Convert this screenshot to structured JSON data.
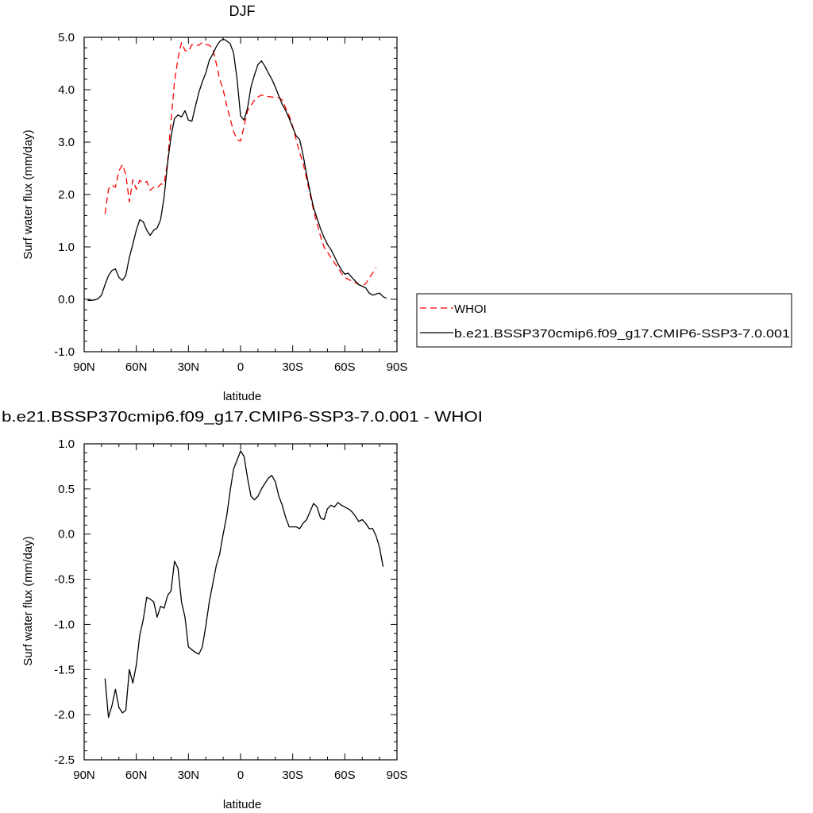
{
  "chart_data": [
    {
      "type": "line",
      "title": "DJF",
      "xlabel": "latitude",
      "ylabel": "Surf water flux (mm/day)",
      "xlim": [
        90,
        -90
      ],
      "ylim": [
        -1.0,
        5.0
      ],
      "x_tick_values": [
        90,
        60,
        30,
        0,
        -30,
        -60,
        -90
      ],
      "x_tick_labels": [
        "90N",
        "60N",
        "30N",
        "0",
        "30S",
        "60S",
        "90S"
      ],
      "y_tick_values": [
        -1,
        0,
        1,
        2,
        3,
        4,
        5
      ],
      "y_tick_labels": [
        "-1.0",
        "0.0",
        "1.0",
        "2.0",
        "3.0",
        "4.0",
        "5.0"
      ],
      "grid": false,
      "legend_position": "right",
      "series": [
        {
          "name": "WHOI",
          "color": "#ff0000",
          "dash": "dashed",
          "points": [
            [
              78,
              1.63
            ],
            [
              76,
              2.1
            ],
            [
              74,
              2.18
            ],
            [
              72,
              2.14
            ],
            [
              70,
              2.45
            ],
            [
              68,
              2.57
            ],
            [
              66,
              2.38
            ],
            [
              64,
              1.86
            ],
            [
              62,
              2.28
            ],
            [
              60,
              2.1
            ],
            [
              58,
              2.27
            ],
            [
              56,
              2.22
            ],
            [
              54,
              2.25
            ],
            [
              52,
              2.08
            ],
            [
              50,
              2.14
            ],
            [
              48,
              2.12
            ],
            [
              46,
              2.2
            ],
            [
              44,
              2.2
            ],
            [
              42,
              2.63
            ],
            [
              40,
              3.4
            ],
            [
              38,
              4.15
            ],
            [
              36,
              4.6
            ],
            [
              34,
              4.9
            ],
            [
              32,
              4.75
            ],
            [
              30,
              4.73
            ],
            [
              28,
              4.86
            ],
            [
              26,
              4.84
            ],
            [
              24,
              4.85
            ],
            [
              22,
              4.9
            ],
            [
              20,
              4.86
            ],
            [
              18,
              4.85
            ],
            [
              16,
              4.78
            ],
            [
              14,
              4.5
            ],
            [
              12,
              4.2
            ],
            [
              10,
              4.0
            ],
            [
              8,
              3.7
            ],
            [
              6,
              3.45
            ],
            [
              4,
              3.2
            ],
            [
              2,
              3.05
            ],
            [
              0,
              3.02
            ],
            [
              -2,
              3.3
            ],
            [
              -4,
              3.6
            ],
            [
              -6,
              3.7
            ],
            [
              -8,
              3.8
            ],
            [
              -10,
              3.86
            ],
            [
              -12,
              3.9
            ],
            [
              -14,
              3.88
            ],
            [
              -16,
              3.87
            ],
            [
              -18,
              3.86
            ],
            [
              -20,
              3.85
            ],
            [
              -22,
              3.85
            ],
            [
              -24,
              3.8
            ],
            [
              -26,
              3.65
            ],
            [
              -28,
              3.5
            ],
            [
              -30,
              3.3
            ],
            [
              -32,
              3.05
            ],
            [
              -34,
              2.8
            ],
            [
              -36,
              2.6
            ],
            [
              -38,
              2.3
            ],
            [
              -40,
              2.0
            ],
            [
              -42,
              1.7
            ],
            [
              -44,
              1.45
            ],
            [
              -46,
              1.2
            ],
            [
              -48,
              1.0
            ],
            [
              -50,
              0.9
            ],
            [
              -52,
              0.8
            ],
            [
              -54,
              0.7
            ],
            [
              -56,
              0.6
            ],
            [
              -58,
              0.5
            ],
            [
              -60,
              0.42
            ],
            [
              -62,
              0.38
            ],
            [
              -64,
              0.35
            ],
            [
              -66,
              0.32
            ],
            [
              -68,
              0.28
            ],
            [
              -70,
              0.25
            ],
            [
              -72,
              0.3
            ],
            [
              -74,
              0.4
            ],
            [
              -76,
              0.5
            ],
            [
              -78,
              0.6
            ]
          ]
        },
        {
          "name": "b.e21.BSSP370cmip6.f09_g17.CMIP6-SSP3-7.0.001",
          "color": "#000000",
          "dash": "solid",
          "points": [
            [
              88,
              -0.02
            ],
            [
              86,
              -0.02
            ],
            [
              84,
              -0.01
            ],
            [
              82,
              0.01
            ],
            [
              80,
              0.08
            ],
            [
              78,
              0.28
            ],
            [
              76,
              0.45
            ],
            [
              74,
              0.55
            ],
            [
              72,
              0.58
            ],
            [
              70,
              0.42
            ],
            [
              68,
              0.36
            ],
            [
              66,
              0.46
            ],
            [
              64,
              0.8
            ],
            [
              62,
              1.05
            ],
            [
              60,
              1.32
            ],
            [
              58,
              1.52
            ],
            [
              56,
              1.48
            ],
            [
              54,
              1.32
            ],
            [
              52,
              1.22
            ],
            [
              50,
              1.32
            ],
            [
              48,
              1.36
            ],
            [
              46,
              1.52
            ],
            [
              44,
              1.95
            ],
            [
              42,
              2.6
            ],
            [
              40,
              3.1
            ],
            [
              38,
              3.45
            ],
            [
              36,
              3.52
            ],
            [
              34,
              3.48
            ],
            [
              32,
              3.6
            ],
            [
              30,
              3.42
            ],
            [
              28,
              3.4
            ],
            [
              26,
              3.68
            ],
            [
              24,
              3.95
            ],
            [
              22,
              4.15
            ],
            [
              20,
              4.32
            ],
            [
              18,
              4.56
            ],
            [
              16,
              4.68
            ],
            [
              14,
              4.82
            ],
            [
              12,
              4.92
            ],
            [
              10,
              4.97
            ],
            [
              8,
              4.93
            ],
            [
              6,
              4.88
            ],
            [
              4,
              4.7
            ],
            [
              2,
              4.2
            ],
            [
              0,
              3.5
            ],
            [
              -2,
              3.42
            ],
            [
              -4,
              3.65
            ],
            [
              -6,
              4.05
            ],
            [
              -8,
              4.28
            ],
            [
              -10,
              4.48
            ],
            [
              -12,
              4.55
            ],
            [
              -14,
              4.45
            ],
            [
              -16,
              4.32
            ],
            [
              -18,
              4.2
            ],
            [
              -20,
              4.05
            ],
            [
              -22,
              3.88
            ],
            [
              -24,
              3.72
            ],
            [
              -26,
              3.6
            ],
            [
              -28,
              3.45
            ],
            [
              -30,
              3.28
            ],
            [
              -32,
              3.12
            ],
            [
              -34,
              3.05
            ],
            [
              -36,
              2.75
            ],
            [
              -38,
              2.38
            ],
            [
              -40,
              2.05
            ],
            [
              -42,
              1.75
            ],
            [
              -44,
              1.55
            ],
            [
              -46,
              1.35
            ],
            [
              -48,
              1.18
            ],
            [
              -50,
              1.05
            ],
            [
              -52,
              0.95
            ],
            [
              -54,
              0.82
            ],
            [
              -56,
              0.68
            ],
            [
              -58,
              0.56
            ],
            [
              -60,
              0.48
            ],
            [
              -62,
              0.5
            ],
            [
              -64,
              0.42
            ],
            [
              -66,
              0.35
            ],
            [
              -68,
              0.28
            ],
            [
              -70,
              0.25
            ],
            [
              -72,
              0.22
            ],
            [
              -74,
              0.12
            ],
            [
              -76,
              0.08
            ],
            [
              -78,
              0.1
            ],
            [
              -80,
              0.12
            ],
            [
              -82,
              0.05
            ],
            [
              -84,
              0.02
            ]
          ]
        }
      ]
    },
    {
      "type": "line",
      "title": "b.e21.BSSP370cmip6.f09_g17.CMIP6-SSP3-7.0.001 - WHOI",
      "xlabel": "latitude",
      "ylabel": "Surf water flux (mm/day)",
      "xlim": [
        90,
        -90
      ],
      "ylim": [
        -2.5,
        1.0
      ],
      "x_tick_values": [
        90,
        60,
        30,
        0,
        -30,
        -60,
        -90
      ],
      "x_tick_labels": [
        "90N",
        "60N",
        "30N",
        "0",
        "30S",
        "60S",
        "90S"
      ],
      "y_tick_values": [
        -2.5,
        -2.0,
        -1.5,
        -1.0,
        -0.5,
        0.0,
        0.5,
        1.0
      ],
      "y_tick_labels": [
        "-2.5",
        "-2.0",
        "-1.5",
        "-1.0",
        "-0.5",
        "0.0",
        "0.5",
        "1.0"
      ],
      "grid": false,
      "series": [
        {
          "color": "#000000",
          "dash": "solid",
          "points": [
            [
              78,
              -1.6
            ],
            [
              76,
              -2.03
            ],
            [
              74,
              -1.9
            ],
            [
              72,
              -1.72
            ],
            [
              70,
              -1.92
            ],
            [
              68,
              -1.98
            ],
            [
              66,
              -1.95
            ],
            [
              64,
              -1.5
            ],
            [
              62,
              -1.65
            ],
            [
              60,
              -1.45
            ],
            [
              58,
              -1.12
            ],
            [
              56,
              -0.95
            ],
            [
              54,
              -0.7
            ],
            [
              52,
              -0.72
            ],
            [
              50,
              -0.75
            ],
            [
              48,
              -0.92
            ],
            [
              46,
              -0.8
            ],
            [
              44,
              -0.82
            ],
            [
              42,
              -0.68
            ],
            [
              40,
              -0.63
            ],
            [
              38,
              -0.3
            ],
            [
              36,
              -0.38
            ],
            [
              34,
              -0.75
            ],
            [
              32,
              -0.92
            ],
            [
              30,
              -1.25
            ],
            [
              28,
              -1.28
            ],
            [
              26,
              -1.31
            ],
            [
              24,
              -1.33
            ],
            [
              22,
              -1.25
            ],
            [
              20,
              -1.02
            ],
            [
              18,
              -0.75
            ],
            [
              16,
              -0.55
            ],
            [
              14,
              -0.35
            ],
            [
              12,
              -0.22
            ],
            [
              10,
              0.0
            ],
            [
              8,
              0.2
            ],
            [
              6,
              0.48
            ],
            [
              4,
              0.72
            ],
            [
              2,
              0.82
            ],
            [
              0,
              0.92
            ],
            [
              -2,
              0.86
            ],
            [
              -4,
              0.62
            ],
            [
              -6,
              0.42
            ],
            [
              -8,
              0.38
            ],
            [
              -10,
              0.42
            ],
            [
              -12,
              0.5
            ],
            [
              -14,
              0.56
            ],
            [
              -16,
              0.62
            ],
            [
              -18,
              0.65
            ],
            [
              -20,
              0.58
            ],
            [
              -22,
              0.42
            ],
            [
              -24,
              0.32
            ],
            [
              -26,
              0.18
            ],
            [
              -28,
              0.08
            ],
            [
              -30,
              0.08
            ],
            [
              -32,
              0.08
            ],
            [
              -34,
              0.06
            ],
            [
              -36,
              0.12
            ],
            [
              -38,
              0.16
            ],
            [
              -40,
              0.25
            ],
            [
              -42,
              0.34
            ],
            [
              -44,
              0.3
            ],
            [
              -46,
              0.18
            ],
            [
              -48,
              0.16
            ],
            [
              -50,
              0.28
            ],
            [
              -52,
              0.32
            ],
            [
              -54,
              0.3
            ],
            [
              -56,
              0.35
            ],
            [
              -58,
              0.32
            ],
            [
              -60,
              0.3
            ],
            [
              -62,
              0.28
            ],
            [
              -64,
              0.25
            ],
            [
              -66,
              0.2
            ],
            [
              -68,
              0.14
            ],
            [
              -70,
              0.16
            ],
            [
              -72,
              0.12
            ],
            [
              -74,
              0.06
            ],
            [
              -76,
              0.06
            ],
            [
              -78,
              -0.02
            ],
            [
              -80,
              -0.15
            ],
            [
              -82,
              -0.36
            ]
          ]
        }
      ]
    }
  ]
}
